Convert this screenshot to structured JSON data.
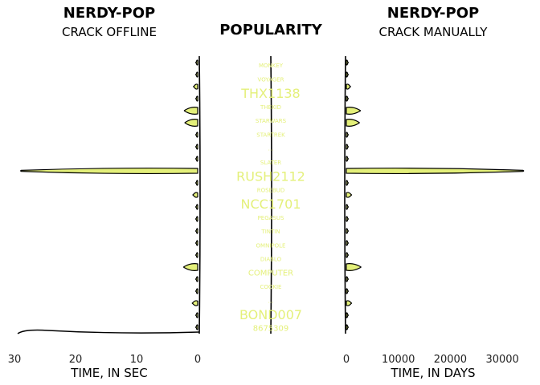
{
  "colors": {
    "accent": "#e4f07a",
    "outline": "#000000"
  },
  "chart_data": [
    {
      "type": "bar",
      "title": "NERDY-POP",
      "subtitle": "CRACK OFFLINE",
      "xlabel": "TIME, IN SEC",
      "xlim": [
        30,
        0
      ],
      "xticks": [
        "30",
        "20",
        "10",
        "0"
      ],
      "orientation": "horizontal",
      "values": [
        0.1,
        0.1,
        0.6,
        0.1,
        2.1,
        2.0,
        0.1,
        0.1,
        0.1,
        28.9,
        0.1,
        0.7,
        0.1,
        0.1,
        0.1,
        0.1,
        0.1,
        2.2,
        0.1,
        0.1,
        0.8,
        0.1,
        0.1
      ]
    },
    {
      "type": "table",
      "title": "POPULARITY",
      "words": [
        "MONKEY",
        "VOYAGER",
        "THX1138",
        "THEKID",
        "STARWARS",
        "STARTREK",
        "...",
        "SLATER",
        "RUSH2112",
        "ROSEBUD",
        "NCC1701",
        "PEGASUS",
        "TINTIN",
        "OMNIPOLE",
        "DIABLO",
        "COMPUTER",
        "COOKIE",
        "...",
        "BOND007",
        "8675309"
      ],
      "weights": [
        1,
        1,
        3,
        1,
        1,
        1,
        1,
        1,
        3,
        1,
        3,
        1,
        1,
        1,
        1,
        2,
        1,
        1,
        3,
        2
      ]
    },
    {
      "type": "bar",
      "title": "NERDY-POP",
      "subtitle": "CRACK MANUALLY",
      "xlabel": "TIME, IN DAYS",
      "xlim": [
        0,
        34000
      ],
      "xticks": [
        "0",
        "10000",
        "20000",
        "30000"
      ],
      "orientation": "horizontal",
      "values": [
        100,
        100,
        700,
        100,
        2600,
        2400,
        100,
        100,
        100,
        34000,
        100,
        900,
        100,
        100,
        100,
        100,
        100,
        2700,
        100,
        100,
        900,
        100,
        100
      ]
    }
  ]
}
